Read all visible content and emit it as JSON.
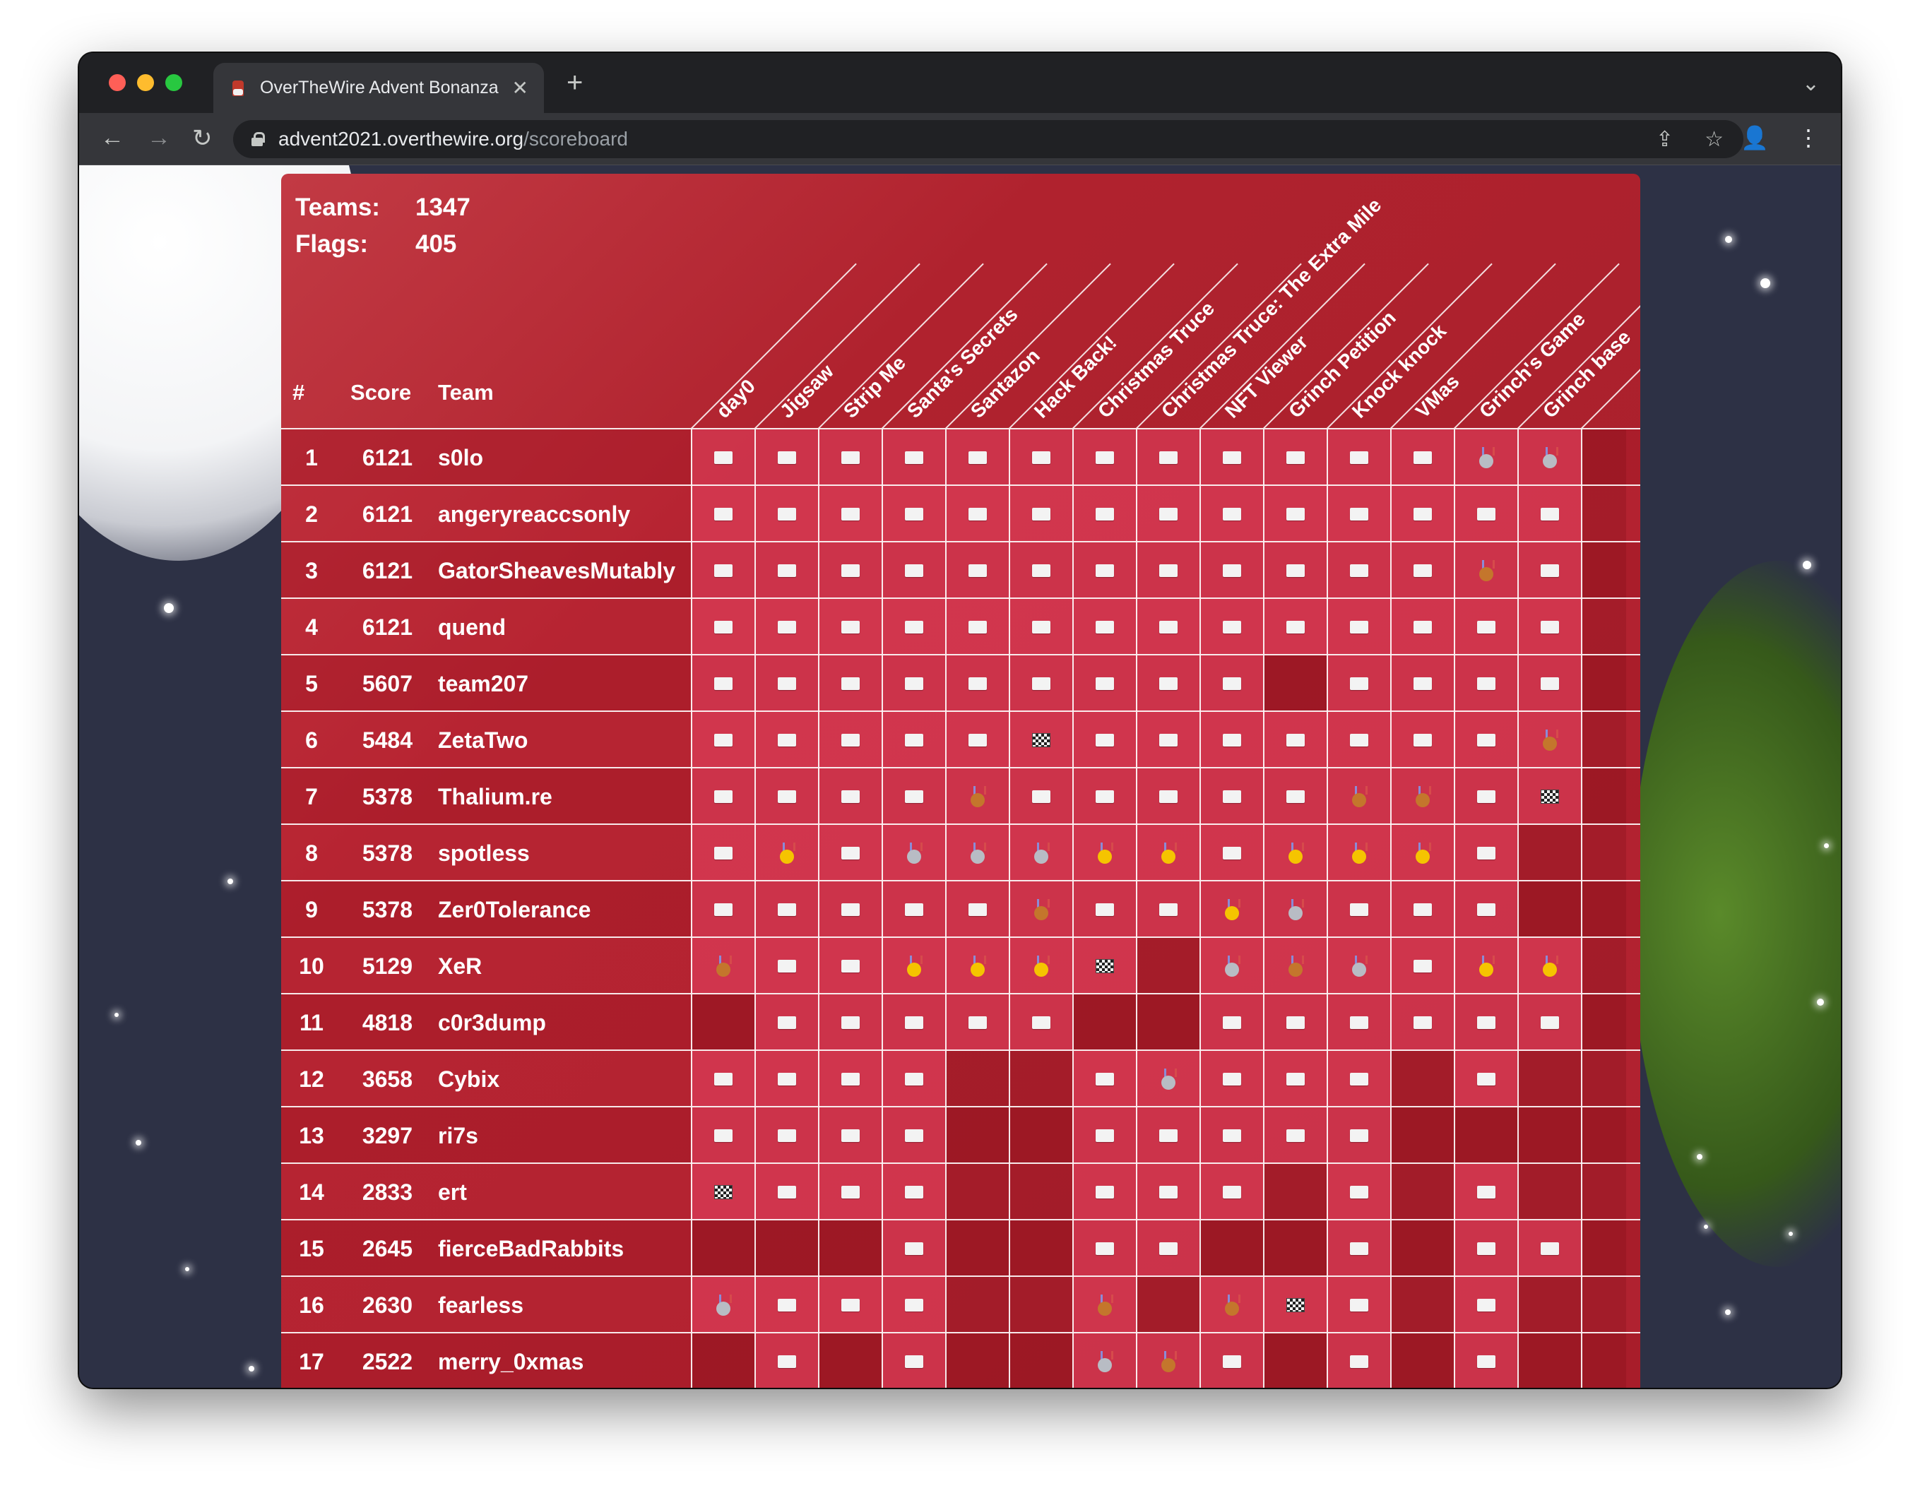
{
  "browser": {
    "tab_title": "OverTheWire Advent Bonanza (",
    "tab_close": "✕",
    "new_tab": "+",
    "tab_menu": "⌄",
    "url_host": "advent2021.overthewire.org",
    "url_path": "/scoreboard",
    "back": "←",
    "forward": "→",
    "reload": "↻",
    "share": "⇪",
    "bookmark": "☆",
    "profile": "👤",
    "menu": "⋮"
  },
  "stats": {
    "teams_label": "Teams:",
    "teams_value": "1347",
    "flags_label": "Flags:",
    "flags_value": "405"
  },
  "headers": {
    "rank": "#",
    "score": "Score",
    "team": "Team"
  },
  "challenges": [
    "day0",
    "Jigsaw",
    "Strip Me",
    "Santa's Secrets",
    "Santazon",
    "Hack Back!",
    "Christmas Truce",
    "Christmas Truce: The Extra Mile",
    "NFT Viewer",
    "Grinch Petition",
    "Knock knock",
    "VMas",
    "Grinch's Game",
    "Grinch base"
  ],
  "legend_states": {
    "f": "flag",
    "g": "gold-medal",
    "s": "silver-medal",
    "b": "bronze-medal",
    "c": "checkered-flag",
    "-": "unsolved"
  },
  "rows": [
    {
      "rank": "1",
      "score": "6121",
      "team": "s0lo",
      "cells": [
        "f",
        "f",
        "f",
        "f",
        "f",
        "f",
        "f",
        "f",
        "f",
        "f",
        "f",
        "f",
        "s",
        "s"
      ]
    },
    {
      "rank": "2",
      "score": "6121",
      "team": "angeryreaccsonly",
      "cells": [
        "f",
        "f",
        "f",
        "f",
        "f",
        "f",
        "f",
        "f",
        "f",
        "f",
        "f",
        "f",
        "f",
        "f"
      ]
    },
    {
      "rank": "3",
      "score": "6121",
      "team": "GatorSheavesMutably",
      "cells": [
        "f",
        "f",
        "f",
        "f",
        "f",
        "f",
        "f",
        "f",
        "f",
        "f",
        "f",
        "f",
        "b",
        "f"
      ]
    },
    {
      "rank": "4",
      "score": "6121",
      "team": "quend",
      "cells": [
        "f",
        "f",
        "f",
        "f",
        "f",
        "f",
        "f",
        "f",
        "f",
        "f",
        "f",
        "f",
        "f",
        "f"
      ]
    },
    {
      "rank": "5",
      "score": "5607",
      "team": "team207",
      "cells": [
        "f",
        "f",
        "f",
        "f",
        "f",
        "f",
        "f",
        "f",
        "f",
        "-",
        "f",
        "f",
        "f",
        "f"
      ]
    },
    {
      "rank": "6",
      "score": "5484",
      "team": "ZetaTwo",
      "cells": [
        "f",
        "f",
        "f",
        "f",
        "f",
        "c",
        "f",
        "f",
        "f",
        "f",
        "f",
        "f",
        "f",
        "b"
      ]
    },
    {
      "rank": "7",
      "score": "5378",
      "team": "Thalium.re",
      "cells": [
        "f",
        "f",
        "f",
        "f",
        "b",
        "f",
        "f",
        "f",
        "f",
        "f",
        "b",
        "b",
        "f",
        "c"
      ]
    },
    {
      "rank": "8",
      "score": "5378",
      "team": "spotless",
      "cells": [
        "f",
        "g",
        "f",
        "s",
        "s",
        "s",
        "g",
        "g",
        "f",
        "g",
        "g",
        "g",
        "f",
        "-"
      ]
    },
    {
      "rank": "9",
      "score": "5378",
      "team": "Zer0Tolerance",
      "cells": [
        "f",
        "f",
        "f",
        "f",
        "f",
        "b",
        "f",
        "f",
        "g",
        "s",
        "f",
        "f",
        "f",
        "-"
      ]
    },
    {
      "rank": "10",
      "score": "5129",
      "team": "XeR",
      "cells": [
        "b",
        "f",
        "f",
        "g",
        "g",
        "g",
        "c",
        "-",
        "s",
        "b",
        "s",
        "f",
        "g",
        "g"
      ]
    },
    {
      "rank": "11",
      "score": "4818",
      "team": "c0r3dump",
      "cells": [
        "-",
        "f",
        "f",
        "f",
        "f",
        "f",
        "-",
        "-",
        "f",
        "f",
        "f",
        "f",
        "f",
        "f"
      ]
    },
    {
      "rank": "12",
      "score": "3658",
      "team": "Cybix",
      "cells": [
        "f",
        "f",
        "f",
        "f",
        "-",
        "-",
        "f",
        "s",
        "f",
        "f",
        "f",
        "-",
        "f",
        "-"
      ]
    },
    {
      "rank": "13",
      "score": "3297",
      "team": "ri7s",
      "cells": [
        "f",
        "f",
        "f",
        "f",
        "-",
        "-",
        "f",
        "f",
        "f",
        "f",
        "f",
        "-",
        "-",
        "-"
      ]
    },
    {
      "rank": "14",
      "score": "2833",
      "team": "ert",
      "cells": [
        "c",
        "f",
        "f",
        "f",
        "-",
        "-",
        "f",
        "f",
        "f",
        "-",
        "f",
        "-",
        "f",
        "-"
      ]
    },
    {
      "rank": "15",
      "score": "2645",
      "team": "fierceBadRabbits",
      "cells": [
        "-",
        "-",
        "-",
        "f",
        "-",
        "-",
        "f",
        "f",
        "-",
        "-",
        "f",
        "-",
        "f",
        "f"
      ]
    },
    {
      "rank": "16",
      "score": "2630",
      "team": "fearless",
      "cells": [
        "s",
        "f",
        "f",
        "f",
        "-",
        "-",
        "b",
        "-",
        "b",
        "c",
        "f",
        "-",
        "f",
        "-"
      ]
    },
    {
      "rank": "17",
      "score": "2522",
      "team": "merry_0xmas",
      "cells": [
        "-",
        "f",
        "-",
        "f",
        "-",
        "-",
        "s",
        "b",
        "f",
        "-",
        "f",
        "-",
        "f",
        "-"
      ]
    }
  ]
}
